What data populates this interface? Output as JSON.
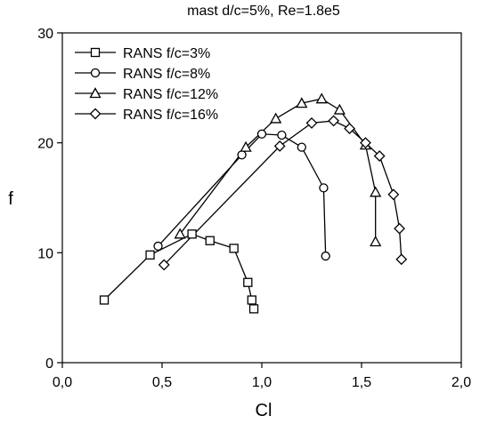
{
  "chart_data": {
    "type": "line",
    "title": "mast d/c=5%, Re=1.8e5",
    "xlabel": "Cl",
    "ylabel": "f",
    "xlim": [
      0.0,
      2.0
    ],
    "ylim": [
      0,
      30
    ],
    "x_ticks": [
      0.0,
      0.5,
      1.0,
      1.5,
      2.0
    ],
    "x_tick_labels": [
      "0,0",
      "0,5",
      "1,0",
      "1,5",
      "2,0"
    ],
    "y_ticks": [
      0,
      10,
      20,
      30
    ],
    "y_tick_labels": [
      "0",
      "10",
      "20",
      "30"
    ],
    "grid": false,
    "legend_position": "top-left",
    "line_color": "#000000",
    "series": [
      {
        "name": "RANS f/c=3%",
        "marker": "square",
        "points": [
          [
            0.21,
            5.7
          ],
          [
            0.44,
            9.8
          ],
          [
            0.65,
            11.7
          ],
          [
            0.74,
            11.1
          ],
          [
            0.86,
            10.4
          ],
          [
            0.93,
            7.3
          ],
          [
            0.95,
            5.7
          ],
          [
            0.96,
            4.9
          ]
        ]
      },
      {
        "name": "RANS f/c=8%",
        "marker": "circle",
        "points": [
          [
            0.48,
            10.6
          ],
          [
            0.9,
            18.9
          ],
          [
            1.0,
            20.8
          ],
          [
            1.1,
            20.7
          ],
          [
            1.2,
            19.6
          ],
          [
            1.31,
            15.9
          ],
          [
            1.32,
            9.7
          ]
        ]
      },
      {
        "name": "RANS f/c=12%",
        "marker": "triangle",
        "points": [
          [
            0.59,
            11.7
          ],
          [
            0.92,
            19.6
          ],
          [
            1.07,
            22.2
          ],
          [
            1.2,
            23.6
          ],
          [
            1.3,
            24.0
          ],
          [
            1.39,
            23.0
          ],
          [
            1.52,
            19.8
          ],
          [
            1.57,
            15.5
          ],
          [
            1.57,
            11.0
          ]
        ]
      },
      {
        "name": "RANS f/c=16%",
        "marker": "diamond",
        "points": [
          [
            0.51,
            8.9
          ],
          [
            1.09,
            19.7
          ],
          [
            1.25,
            21.8
          ],
          [
            1.36,
            22.0
          ],
          [
            1.44,
            21.3
          ],
          [
            1.52,
            20.0
          ],
          [
            1.59,
            18.8
          ],
          [
            1.66,
            15.3
          ],
          [
            1.69,
            12.2
          ],
          [
            1.7,
            9.4
          ]
        ]
      }
    ]
  }
}
